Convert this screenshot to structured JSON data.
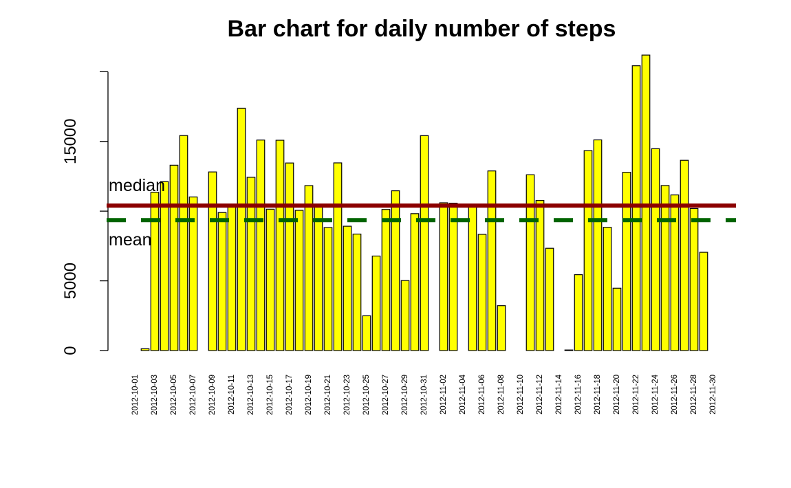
{
  "chart_data": {
    "type": "bar",
    "title": "Bar chart for daily number of steps",
    "categories": [
      "2012-10-01",
      null,
      "2012-10-03",
      null,
      "2012-10-05",
      null,
      "2012-10-07",
      null,
      "2012-10-09",
      null,
      "2012-10-11",
      null,
      "2012-10-13",
      null,
      "2012-10-15",
      null,
      "2012-10-17",
      null,
      "2012-10-19",
      null,
      "2012-10-21",
      null,
      "2012-10-23",
      null,
      "2012-10-25",
      null,
      "2012-10-27",
      null,
      "2012-10-29",
      null,
      "2012-10-31",
      null,
      "2012-11-02",
      null,
      "2012-11-04",
      null,
      "2012-11-06",
      null,
      "2012-11-08",
      null,
      "2012-11-10",
      null,
      "2012-11-12",
      null,
      "2012-11-14",
      null,
      "2012-11-16",
      null,
      "2012-11-18",
      null,
      "2012-11-20",
      null,
      "2012-11-22",
      null,
      "2012-11-24",
      null,
      "2012-11-26",
      null,
      "2012-11-28",
      null,
      "2012-11-30"
    ],
    "values": [
      0,
      126,
      11352,
      12116,
      13294,
      15420,
      11015,
      0,
      12811,
      9900,
      10304,
      17382,
      12426,
      15098,
      10139,
      15084,
      13452,
      10056,
      11829,
      10395,
      8821,
      13460,
      8918,
      8355,
      2492,
      6778,
      10119,
      11458,
      5018,
      9819,
      15414,
      0,
      10600,
      10571,
      0,
      10439,
      8334,
      12883,
      3219,
      0,
      0,
      12608,
      10765,
      7336,
      0,
      41,
      5441,
      14339,
      15110,
      8841,
      4472,
      12787,
      20427,
      21194,
      14478,
      11834,
      11162,
      13646,
      10183,
      7047,
      0
    ],
    "color": "#ffff00",
    "ylim": [
      0,
      21200
    ],
    "yticks": [
      0,
      5000,
      {
        "value": 10000
      },
      15000,
      {
        "value": 20000
      }
    ],
    "reference_lines": [
      {
        "name": "median",
        "value": 10395,
        "color": "#8b0000",
        "dashed": false
      },
      {
        "name": "mean",
        "value": 9354.23,
        "color": "#006400",
        "dashed": true
      }
    ]
  }
}
